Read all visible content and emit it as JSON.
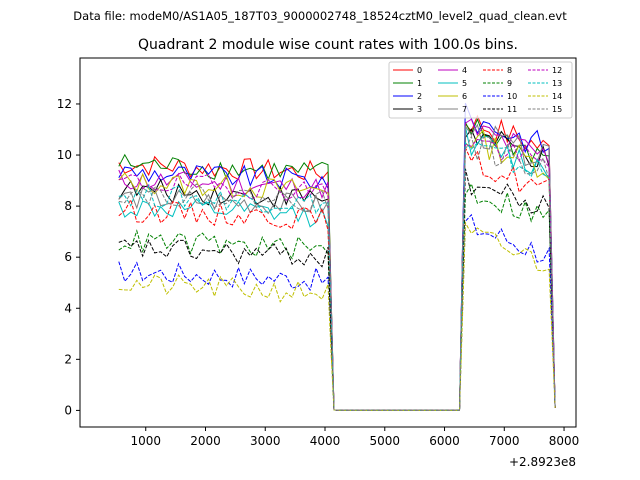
{
  "suptitle": "Data file: modeM0/AS1A05_187T03_9000002748_18524cztM0_level2_quad_clean.evt",
  "chart_data": {
    "type": "line",
    "title": "Quadrant 2 module wise count rates with 100.0s bins.",
    "xlabel": "",
    "ylabel": "",
    "x_offset_label": "+2.8923e8",
    "xlim": [
      -100,
      8200
    ],
    "ylim": [
      -0.65,
      13.8
    ],
    "xticks": [
      1000,
      2000,
      3000,
      4000,
      5000,
      6000,
      7000,
      8000
    ],
    "yticks": [
      0,
      2,
      4,
      6,
      8,
      10,
      12
    ],
    "legend_position": "upper-right",
    "segments": [
      {
        "start": 550,
        "end": 4050,
        "ramp_end": 4150
      },
      {
        "start": 6350,
        "end": 7750,
        "ramp_start": 6250,
        "ramp_end": 7850
      }
    ],
    "series": [
      {
        "name": "0",
        "color": "#ff0000",
        "dash": "solid",
        "level1": 9.3,
        "level2": 10.6
      },
      {
        "name": "1",
        "color": "#008000",
        "dash": "solid",
        "level1": 9.3,
        "level2": 10.3
      },
      {
        "name": "2",
        "color": "#0000ff",
        "dash": "solid",
        "level1": 9.0,
        "level2": 10.7
      },
      {
        "name": "3",
        "color": "#000000",
        "dash": "solid",
        "level1": 8.3,
        "level2": 10.1
      },
      {
        "name": "4",
        "color": "#bf00bf",
        "dash": "solid",
        "level1": 8.7,
        "level2": 10.3
      },
      {
        "name": "5",
        "color": "#00bfbf",
        "dash": "solid",
        "level1": 7.6,
        "level2": 9.8
      },
      {
        "name": "6",
        "color": "#bfbf00",
        "dash": "solid",
        "level1": 8.6,
        "level2": 9.9
      },
      {
        "name": "7",
        "color": "#808080",
        "dash": "solid",
        "level1": 8.0,
        "level2": 10.2
      },
      {
        "name": "8",
        "color": "#ff0000",
        "dash": "dashed",
        "level1": 7.5,
        "level2": 9.0
      },
      {
        "name": "9",
        "color": "#008000",
        "dash": "dashed",
        "level1": 6.3,
        "level2": 7.9
      },
      {
        "name": "10",
        "color": "#0000ff",
        "dash": "dashed",
        "level1": 5.1,
        "level2": 6.5
      },
      {
        "name": "11",
        "color": "#000000",
        "dash": "dashed",
        "level1": 6.0,
        "level2": 8.2
      },
      {
        "name": "12",
        "color": "#bf00bf",
        "dash": "dashed",
        "level1": 8.6,
        "level2": 9.9
      },
      {
        "name": "13",
        "color": "#00bfbf",
        "dash": "dashed",
        "level1": 8.1,
        "level2": 9.6
      },
      {
        "name": "14",
        "color": "#bfbf00",
        "dash": "dashed",
        "level1": 4.6,
        "level2": 6.1
      },
      {
        "name": "15",
        "color": "#808080",
        "dash": "dashed",
        "level1": 8.2,
        "level2": 9.7
      }
    ]
  }
}
